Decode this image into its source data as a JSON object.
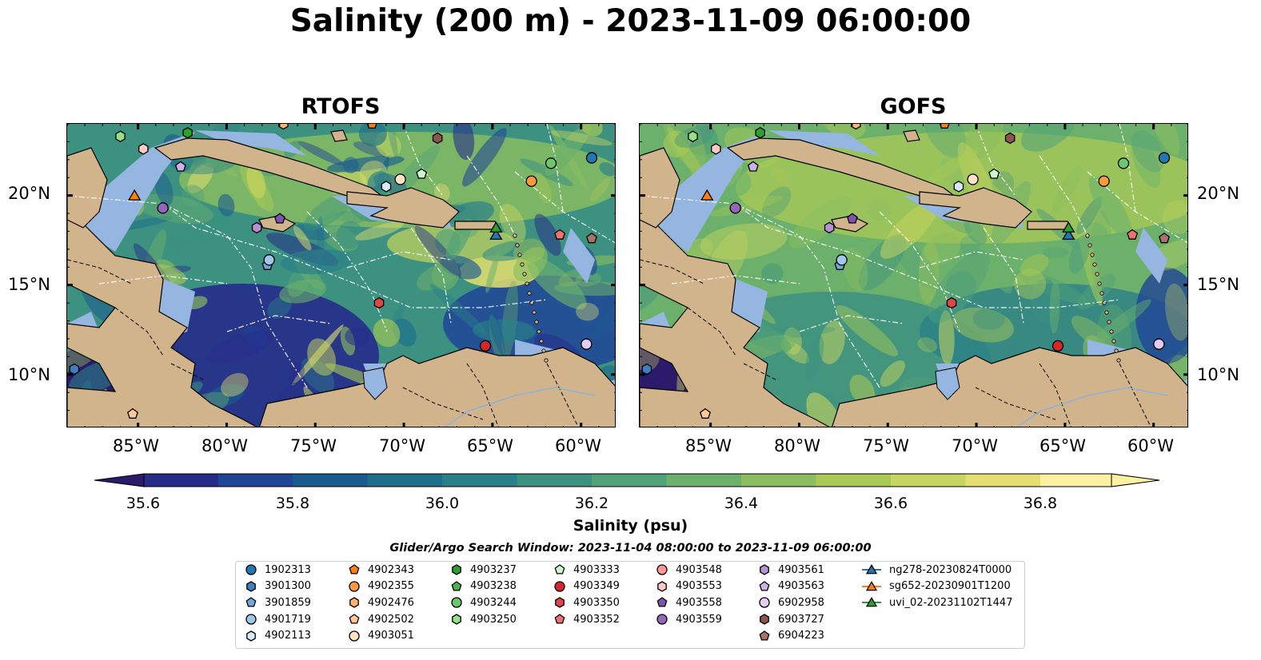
{
  "title": "Salinity (200 m) - 2023-11-09 06:00:00",
  "panels": [
    {
      "title": "RTOFS",
      "variant": "rtofs"
    },
    {
      "title": "GOFS",
      "variant": "gofs"
    }
  ],
  "axes": {
    "lat_ticks": [
      "20°N",
      "15°N",
      "10°N"
    ],
    "lon_ticks": [
      "85°W",
      "80°W",
      "75°W",
      "70°W",
      "65°W",
      "60°W"
    ]
  },
  "colorbar": {
    "label": "Salinity (psu)",
    "ticks": [
      "35.6",
      "35.8",
      "36.0",
      "36.2",
      "36.4",
      "36.6",
      "36.8"
    ],
    "min": 35.5,
    "max": 36.9,
    "step": 0.1,
    "colors": [
      "#2c1a6b",
      "#262c8a",
      "#1f4596",
      "#1a5b8f",
      "#1d6f8b",
      "#2a8088",
      "#3c9181",
      "#52a278",
      "#6cb16b",
      "#8bbe5f",
      "#a9c957",
      "#c8d55e",
      "#e4df6f",
      "#fdf2a2"
    ],
    "extend": "both"
  },
  "legend": {
    "title": "Glider/Argo Search Window: 2023-11-04 08:00:00 to 2023-11-09 06:00:00",
    "items": [
      {
        "label": "1902313",
        "marker": "circle",
        "color": "#1f77b4"
      },
      {
        "label": "3901300",
        "marker": "hexagon",
        "color": "#3d7fbf"
      },
      {
        "label": "3901859",
        "marker": "pentagon",
        "color": "#6fa8dc"
      },
      {
        "label": "4901719",
        "marker": "circle",
        "color": "#9ec9eb"
      },
      {
        "label": "4902113",
        "marker": "hexagon",
        "color": "#d6eaf8"
      },
      {
        "label": "4902343",
        "marker": "pentagon",
        "color": "#ff7f0e"
      },
      {
        "label": "4902355",
        "marker": "circle",
        "color": "#ff9a3c"
      },
      {
        "label": "4902476",
        "marker": "hexagon",
        "color": "#ffb36b"
      },
      {
        "label": "4902502",
        "marker": "pentagon",
        "color": "#ffc999"
      },
      {
        "label": "4903051",
        "marker": "circle",
        "color": "#ffe3c4"
      },
      {
        "label": "4903237",
        "marker": "hexagon",
        "color": "#2ca02c"
      },
      {
        "label": "4903238",
        "marker": "pentagon",
        "color": "#4cb34c"
      },
      {
        "label": "4903244",
        "marker": "circle",
        "color": "#6cc66c"
      },
      {
        "label": "4903250",
        "marker": "hexagon",
        "color": "#98df8a"
      },
      {
        "label": "4903333",
        "marker": "pentagon",
        "color": "#ccf5cc"
      },
      {
        "label": "4903349",
        "marker": "circle",
        "color": "#d62728"
      },
      {
        "label": "4903350",
        "marker": "hexagon",
        "color": "#e04848"
      },
      {
        "label": "4903352",
        "marker": "pentagon",
        "color": "#f07070"
      },
      {
        "label": "4903548",
        "marker": "circle",
        "color": "#ff9896"
      },
      {
        "label": "4903553",
        "marker": "hexagon",
        "color": "#ffc9c8"
      },
      {
        "label": "4903558",
        "marker": "pentagon",
        "color": "#7b55b0"
      },
      {
        "label": "4903559",
        "marker": "circle",
        "color": "#9467bd"
      },
      {
        "label": "4903561",
        "marker": "hexagon",
        "color": "#b392d6"
      },
      {
        "label": "4903563",
        "marker": "pentagon",
        "color": "#cbb3e6"
      },
      {
        "label": "6902958",
        "marker": "circle",
        "color": "#e6ccf5"
      },
      {
        "label": "6903727",
        "marker": "hexagon",
        "color": "#8c564b"
      },
      {
        "label": "6904223",
        "marker": "pentagon",
        "color": "#a6746a"
      },
      {
        "label": "ng278-20230824T0000",
        "marker": "triangle",
        "color": "#1f77b4"
      },
      {
        "label": "sg652-20230901T1200",
        "marker": "triangle",
        "color": "#ff7f0e"
      },
      {
        "label": "uvi_02-20231102T1447",
        "marker": "triangle",
        "color": "#2ca02c"
      }
    ]
  },
  "land_color": "#d2b48c",
  "shelf_color": "#96b6e2",
  "map_extent": {
    "lon": [
      -89,
      -58
    ],
    "lat": [
      7,
      24
    ]
  },
  "observations": [
    {
      "id": "1902313",
      "lon": -59.4,
      "lat": 22.1
    },
    {
      "id": "3901300",
      "lon": -88.6,
      "lat": 10.3
    },
    {
      "id": "3901859",
      "lon": -77.7,
      "lat": 16.1
    },
    {
      "id": "4901719",
      "lon": -77.6,
      "lat": 16.4
    },
    {
      "id": "4902113",
      "lon": -71.0,
      "lat": 20.5
    },
    {
      "id": "4902343",
      "lon": -71.8,
      "lat": 24.0
    },
    {
      "id": "4902355",
      "lon": -62.8,
      "lat": 20.8
    },
    {
      "id": "4902476",
      "lon": -76.8,
      "lat": 24.0
    },
    {
      "id": "4902502",
      "lon": -85.3,
      "lat": 7.8
    },
    {
      "id": "4903051",
      "lon": -70.2,
      "lat": 20.9
    },
    {
      "id": "4903237",
      "lon": -82.2,
      "lat": 23.5
    },
    {
      "id": "4903244",
      "lon": -61.7,
      "lat": 21.8
    },
    {
      "id": "4903250",
      "lon": -86.0,
      "lat": 23.3
    },
    {
      "id": "4903333",
      "lon": -69.0,
      "lat": 21.2
    },
    {
      "id": "4903349",
      "lon": -65.4,
      "lat": 11.6
    },
    {
      "id": "4903350",
      "lon": -71.4,
      "lat": 14.0
    },
    {
      "id": "4903352",
      "lon": -61.2,
      "lat": 17.8
    },
    {
      "id": "4903553",
      "lon": -84.7,
      "lat": 22.6
    },
    {
      "id": "4903558",
      "lon": -77.0,
      "lat": 18.7
    },
    {
      "id": "4903559",
      "lon": -83.6,
      "lat": 19.3
    },
    {
      "id": "4903561",
      "lon": -78.3,
      "lat": 18.2
    },
    {
      "id": "4903563",
      "lon": -82.6,
      "lat": 21.6
    },
    {
      "id": "6902958",
      "lon": -59.7,
      "lat": 11.7
    },
    {
      "id": "6903727",
      "lon": -68.1,
      "lat": 23.2
    },
    {
      "id": "6904223",
      "lon": -59.4,
      "lat": 17.6
    },
    {
      "id": "ng278-20230824T0000",
      "lon": -64.8,
      "lat": 17.8
    },
    {
      "id": "sg652-20230901T1200",
      "lon": -85.2,
      "lat": 20.0
    },
    {
      "id": "uvi_02-20231102T1447",
      "lon": -64.8,
      "lat": 18.2
    }
  ]
}
